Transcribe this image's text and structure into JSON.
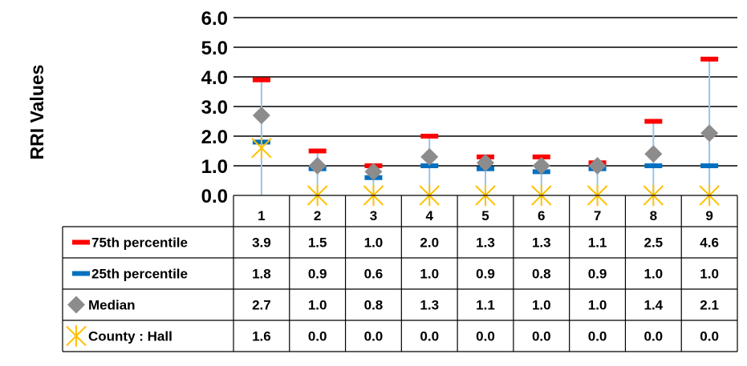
{
  "chart_data": {
    "type": "table",
    "ylabel": "RRI Values",
    "ylim": [
      0,
      6
    ],
    "yticks": [
      "0.0",
      "1.0",
      "2.0",
      "3.0",
      "4.0",
      "5.0",
      "6.0"
    ],
    "grid": true,
    "categories": [
      "1",
      "2",
      "3",
      "4",
      "5",
      "6",
      "7",
      "8",
      "9"
    ],
    "series": [
      {
        "name": "75th percentile",
        "marker": "dash",
        "color": "#ff0000",
        "values": [
          3.9,
          1.5,
          1.0,
          2.0,
          1.3,
          1.3,
          1.1,
          2.5,
          4.6
        ],
        "labels": [
          "3.9",
          "1.5",
          "1.0",
          "2.0",
          "1.3",
          "1.3",
          "1.1",
          "2.5",
          "4.6"
        ]
      },
      {
        "name": "25th percentile",
        "marker": "dash",
        "color": "#0070c0",
        "values": [
          1.8,
          0.9,
          0.6,
          1.0,
          0.9,
          0.8,
          0.9,
          1.0,
          1.0
        ],
        "labels": [
          "1.8",
          "0.9",
          "0.6",
          "1.0",
          "0.9",
          "0.8",
          "0.9",
          "1.0",
          "1.0"
        ]
      },
      {
        "name": "Median",
        "marker": "diamond",
        "color": "#8c8c8c",
        "values": [
          2.7,
          1.0,
          0.8,
          1.3,
          1.1,
          1.0,
          1.0,
          1.4,
          2.1
        ],
        "labels": [
          "2.7",
          "1.0",
          "0.8",
          "1.3",
          "1.1",
          "1.0",
          "1.0",
          "1.4",
          "2.1"
        ]
      },
      {
        "name": "County : Hall",
        "marker": "star",
        "color": "#ffc000",
        "values": [
          1.6,
          0.0,
          0.0,
          0.0,
          0.0,
          0.0,
          0.0,
          0.0,
          0.0
        ],
        "labels": [
          "1.6",
          "0.0",
          "0.0",
          "0.0",
          "0.0",
          "0.0",
          "0.0",
          "0.0",
          "0.0"
        ]
      }
    ],
    "whisker_color": "#9dc3e6"
  }
}
